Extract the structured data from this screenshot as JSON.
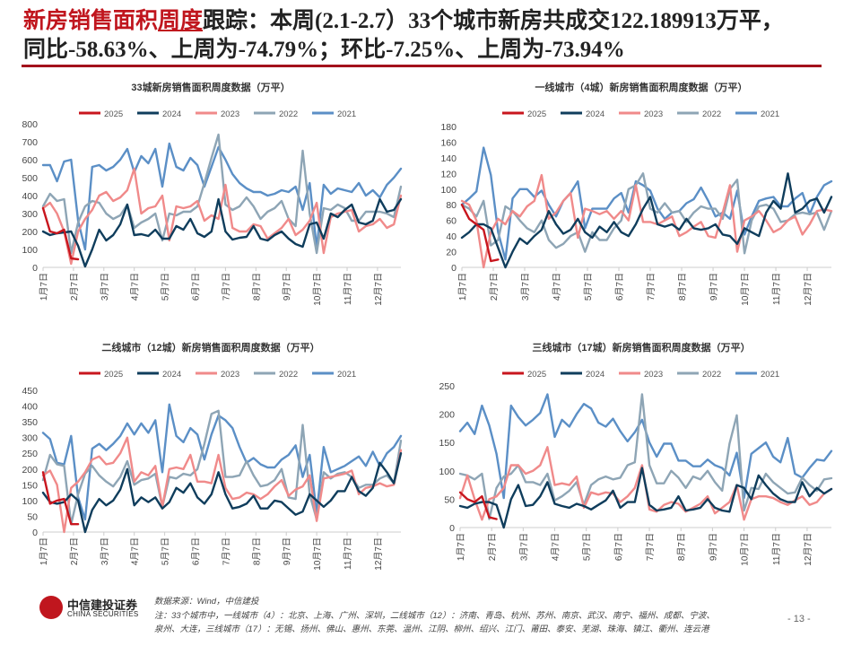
{
  "title": {
    "highlight1": "新房销售面积",
    "highlight2": "周度",
    "rest_line1": "跟踪：本周(2.1-2.7）33个城市新房共成交122.189913万平，",
    "line2": "同比-58.63%、上周为-74.79%；环比-7.25%、上周为-73.94%"
  },
  "colors": {
    "2025": "#c8161e",
    "2024": "#0f3d5c",
    "2023": "#f08a8a",
    "2022": "#8ea5b5",
    "2021": "#5b8fc6",
    "accent": "#a3121c"
  },
  "chart_data": [
    {
      "type": "line",
      "title": "33城新房销售面积周度数据（万平）",
      "x_tick_labels": [
        "1月7日",
        "2月7日",
        "3月7日",
        "4月7日",
        "5月7日",
        "6月7日",
        "7月7日",
        "8月7日",
        "9月7日",
        "10月7日",
        "11月7日",
        "12月7日"
      ],
      "ylim": [
        0,
        800
      ],
      "yticks": [
        0,
        100,
        200,
        300,
        400,
        500,
        600,
        700,
        800
      ],
      "legend": "top",
      "series": [
        {
          "name": "2025",
          "values": [
            330,
            200,
            190,
            210,
            50,
            45
          ]
        },
        {
          "name": "2024",
          "values": [
            200,
            180,
            190,
            195,
            200,
            120,
            5,
            100,
            210,
            150,
            180,
            240,
            350,
            180,
            185,
            175,
            210,
            160,
            160,
            230,
            210,
            270,
            190,
            170,
            200,
            380,
            200,
            155,
            165,
            170,
            230,
            160,
            150,
            180,
            200,
            160,
            130,
            115,
            240,
            250,
            160,
            300,
            280,
            320,
            350,
            250,
            240,
            260,
            380,
            310,
            320,
            380
          ]
        },
        {
          "name": "2023",
          "values": [
            330,
            360,
            300,
            200,
            20,
            200,
            270,
            320,
            400,
            420,
            370,
            390,
            430,
            550,
            300,
            330,
            340,
            400,
            150,
            340,
            330,
            340,
            370,
            260,
            290,
            270,
            460,
            220,
            200,
            200,
            240,
            230,
            160,
            190,
            220,
            270,
            180,
            210,
            260,
            360,
            80,
            280,
            300,
            310,
            320,
            200,
            230,
            240,
            270,
            220,
            240,
            400
          ]
        },
        {
          "name": "2022",
          "values": [
            340,
            410,
            370,
            380,
            80,
            250,
            340,
            370,
            360,
            300,
            270,
            290,
            350,
            220,
            250,
            270,
            300,
            150,
            300,
            290,
            310,
            310,
            340,
            470,
            610,
            740,
            350,
            320,
            340,
            390,
            340,
            270,
            310,
            330,
            370,
            270,
            230,
            650,
            300,
            80,
            330,
            320,
            350,
            330,
            260,
            260,
            310,
            310,
            310,
            300,
            280,
            450
          ]
        },
        {
          "name": "2021",
          "values": [
            570,
            570,
            480,
            590,
            600,
            260,
            100,
            560,
            570,
            540,
            560,
            600,
            660,
            530,
            620,
            580,
            660,
            450,
            690,
            560,
            540,
            610,
            570,
            450,
            560,
            670,
            600,
            520,
            470,
            440,
            420,
            420,
            400,
            410,
            430,
            420,
            450,
            320,
            470,
            110,
            460,
            410,
            440,
            430,
            420,
            470,
            400,
            430,
            390,
            460,
            500,
            550
          ]
        }
      ]
    },
    {
      "type": "line",
      "title": "一线城市（4城）新房销售面积周度数据（万平）",
      "x_tick_labels": [
        "1月7日",
        "2月7日",
        "3月7日",
        "4月7日",
        "5月7日",
        "6月7日",
        "7月7日",
        "8月7日",
        "9月7日",
        "10月7日",
        "11月7日",
        "12月7日"
      ],
      "ylim": [
        0,
        180
      ],
      "yticks": [
        0,
        20,
        40,
        60,
        80,
        100,
        120,
        140,
        160,
        180
      ],
      "legend": "top",
      "series": [
        {
          "name": "2025",
          "values": [
            80,
            62,
            55,
            48,
            8,
            10
          ]
        },
        {
          "name": "2024",
          "values": [
            38,
            45,
            55,
            55,
            50,
            25,
            0,
            20,
            37,
            30,
            40,
            48,
            72,
            55,
            43,
            48,
            62,
            45,
            38,
            52,
            45,
            58,
            45,
            40,
            55,
            75,
            90,
            55,
            52,
            55,
            48,
            62,
            50,
            48,
            50,
            55,
            42,
            40,
            30,
            50,
            45,
            40,
            70,
            85,
            75,
            120,
            70,
            75,
            85,
            88,
            70,
            90
          ]
        },
        {
          "name": "2023",
          "values": [
            85,
            80,
            60,
            0,
            45,
            62,
            55,
            72,
            65,
            78,
            85,
            118,
            62,
            70,
            85,
            95,
            38,
            75,
            72,
            68,
            72,
            62,
            72,
            60,
            105,
            58,
            58,
            55,
            60,
            65,
            40,
            45,
            52,
            58,
            40,
            38,
            70,
            105,
            20,
            60,
            65,
            72,
            60,
            45,
            50,
            60,
            65,
            42,
            55,
            72,
            74,
            72
          ]
        },
        {
          "name": "2022",
          "values": [
            80,
            75,
            65,
            85,
            28,
            35,
            78,
            72,
            60,
            50,
            45,
            60,
            35,
            25,
            30,
            40,
            45,
            20,
            45,
            35,
            35,
            50,
            60,
            100,
            105,
            120,
            75,
            70,
            82,
            70,
            72,
            58,
            70,
            78,
            75,
            75,
            62,
            100,
            112,
            18,
            60,
            78,
            80,
            75,
            58,
            60,
            68,
            70,
            68,
            70,
            48,
            72
          ]
        },
        {
          "name": "2021",
          "values": [
            80,
            88,
            97,
            153,
            118,
            45,
            10,
            88,
            100,
            100,
            90,
            98,
            80,
            65,
            85,
            95,
            110,
            50,
            75,
            75,
            75,
            88,
            95,
            70,
            110,
            105,
            98,
            75,
            62,
            70,
            72,
            82,
            87,
            102,
            85,
            65,
            70,
            62,
            98,
            42,
            65,
            85,
            88,
            90,
            78,
            78,
            88,
            95,
            68,
            90,
            105,
            110
          ]
        }
      ]
    },
    {
      "type": "line",
      "title": "二线城市（12城）新房销售面积周度数据（万平）",
      "x_tick_labels": [
        "1月7日",
        "2月7日",
        "3月7日",
        "4月7日",
        "5月7日",
        "6月7日",
        "7月7日",
        "8月7日",
        "9月7日",
        "10月7日",
        "11月7日",
        "12月7日"
      ],
      "ylim": [
        0,
        450
      ],
      "yticks": [
        0,
        50,
        100,
        150,
        200,
        250,
        300,
        350,
        400,
        450
      ],
      "legend": "top",
      "series": [
        {
          "name": "2025",
          "values": [
            190,
            90,
            100,
            105,
            25,
            25
          ]
        },
        {
          "name": "2024",
          "values": [
            125,
            95,
            90,
            95,
            120,
            100,
            0,
            70,
            105,
            85,
            100,
            135,
            200,
            85,
            110,
            95,
            110,
            75,
            95,
            140,
            125,
            155,
            110,
            90,
            120,
            190,
            120,
            75,
            80,
            90,
            115,
            75,
            75,
            100,
            95,
            75,
            55,
            65,
            120,
            100,
            80,
            100,
            130,
            130,
            175,
            130,
            115,
            140,
            220,
            190,
            155,
            250
          ]
        },
        {
          "name": "2023",
          "values": [
            180,
            195,
            150,
            0,
            140,
            160,
            190,
            230,
            240,
            215,
            220,
            250,
            300,
            160,
            190,
            180,
            210,
            80,
            200,
            205,
            200,
            245,
            160,
            160,
            155,
            245,
            140,
            105,
            110,
            125,
            120,
            105,
            120,
            145,
            165,
            115,
            135,
            145,
            180,
            35,
            170,
            175,
            180,
            185,
            195,
            120,
            140,
            145,
            155,
            145,
            150,
            260
          ]
        },
        {
          "name": "2022",
          "values": [
            165,
            245,
            215,
            210,
            25,
            120,
            185,
            210,
            180,
            160,
            145,
            175,
            225,
            150,
            165,
            170,
            185,
            80,
            175,
            170,
            185,
            180,
            200,
            280,
            375,
            385,
            175,
            175,
            180,
            225,
            180,
            145,
            150,
            165,
            200,
            110,
            105,
            340,
            120,
            40,
            190,
            170,
            185,
            190,
            175,
            140,
            150,
            150,
            170,
            180,
            155,
            290
          ]
        },
        {
          "name": "2021",
          "values": [
            315,
            295,
            220,
            215,
            305,
            110,
            40,
            265,
            280,
            260,
            280,
            305,
            345,
            310,
            345,
            315,
            355,
            190,
            405,
            305,
            285,
            330,
            310,
            230,
            310,
            370,
            355,
            330,
            270,
            220,
            235,
            215,
            205,
            205,
            230,
            245,
            275,
            175,
            245,
            60,
            270,
            190,
            200,
            210,
            225,
            240,
            210,
            255,
            210,
            250,
            270,
            305
          ]
        }
      ]
    },
    {
      "type": "line",
      "title": "三线城市（17城）新房销售面积周度数据（万平）",
      "x_tick_labels": [
        "1月7日",
        "2月7日",
        "3月7日",
        "4月7日",
        "5月7日",
        "6月7日",
        "7月7日",
        "8月7日",
        "9月7日",
        "10月7日",
        "11月7日",
        "12月7日"
      ],
      "ylim": [
        0,
        250
      ],
      "yticks": [
        0,
        50,
        100,
        150,
        200,
        250
      ],
      "legend": "top",
      "series": [
        {
          "name": "2025",
          "values": [
            62,
            50,
            45,
            55,
            18,
            15
          ]
        },
        {
          "name": "2024",
          "values": [
            38,
            35,
            42,
            45,
            45,
            40,
            0,
            50,
            75,
            38,
            40,
            55,
            80,
            42,
            38,
            35,
            42,
            38,
            32,
            40,
            48,
            65,
            35,
            45,
            45,
            105,
            40,
            30,
            32,
            35,
            55,
            30,
            32,
            35,
            50,
            35,
            30,
            28,
            75,
            70,
            50,
            92,
            75,
            60,
            50,
            45,
            45,
            80,
            55,
            70,
            60,
            68
          ]
        },
        {
          "name": "2023",
          "values": [
            52,
            92,
            50,
            14,
            50,
            55,
            70,
            110,
            110,
            95,
            100,
            110,
            142,
            75,
            78,
            75,
            90,
            35,
            62,
            58,
            62,
            60,
            45,
            55,
            70,
            110,
            32,
            28,
            40,
            45,
            42,
            28,
            35,
            42,
            55,
            25,
            35,
            45,
            75,
            14,
            50,
            55,
            55,
            52,
            45,
            40,
            48,
            55,
            40,
            45,
            60,
            68
          ]
        },
        {
          "name": "2022",
          "values": [
            95,
            92,
            85,
            95,
            15,
            70,
            90,
            95,
            110,
            80,
            80,
            75,
            95,
            48,
            55,
            65,
            80,
            40,
            75,
            85,
            90,
            85,
            88,
            110,
            115,
            235,
            110,
            78,
            78,
            100,
            88,
            70,
            90,
            85,
            100,
            80,
            65,
            148,
            198,
            30,
            70,
            68,
            95,
            80,
            70,
            60,
            62,
            88,
            75,
            65,
            85,
            87
          ]
        },
        {
          "name": "2021",
          "values": [
            170,
            185,
            165,
            215,
            180,
            130,
            52,
            215,
            195,
            180,
            190,
            202,
            235,
            160,
            190,
            178,
            200,
            218,
            210,
            185,
            178,
            192,
            170,
            152,
            168,
            190,
            150,
            125,
            148,
            148,
            118,
            118,
            108,
            108,
            120,
            110,
            105,
            92,
            132,
            52,
            130,
            140,
            150,
            125,
            115,
            158,
            95,
            88,
            105,
            120,
            118,
            135
          ]
        }
      ]
    }
  ],
  "footer": {
    "logo_cn": "中信建投证券",
    "logo_en": "CHINA SECURITIES",
    "source": "数据来源：Wind，中信建投",
    "note_line1": "注：33个城市中，一线城市（4）：北京、上海、广州、深圳，二线城市（12）：济南、青岛、杭州、苏州、南京、武汉、南宁、福州、成都、宁波、",
    "note_line2": "泉州、大连，三线城市（17）：无锡、扬州、佛山、惠州、东莞、温州、江阴、柳州、绍兴、江门、莆田、泰安、芜湖、珠海、镇江、衢州、连云港",
    "page_number": "- 13 -"
  }
}
